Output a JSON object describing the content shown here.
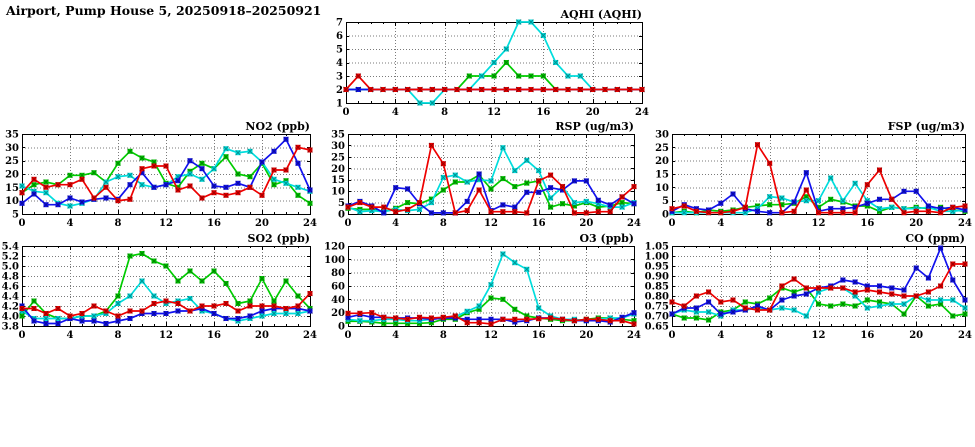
{
  "title": "Airport, Pump House 5, 20250918–20250921",
  "colors": {
    "red": "#ee0000",
    "green": "#00cc00",
    "blue": "#1111ee",
    "cyan": "#00dddd"
  },
  "chart_data": [
    {
      "id": "aqhi",
      "type": "line",
      "title": "AQHI (AQHI)",
      "xlim": [
        0,
        24
      ],
      "xticks": [
        0,
        4,
        8,
        12,
        16,
        20,
        24
      ],
      "x_minor_step": 1,
      "x_step": 1,
      "ylim": [
        1,
        7
      ],
      "yticks": [
        1,
        2,
        3,
        4,
        5,
        6,
        7
      ],
      "ytick_labels": [
        "1",
        "2",
        "3",
        "4",
        "5",
        "6",
        "7"
      ],
      "series": [
        {
          "name": "green",
          "color": "#00cc00",
          "values": [
            2,
            2,
            2,
            2,
            2,
            2,
            2,
            2,
            2,
            2,
            3,
            3,
            3,
            4,
            3,
            3,
            3,
            2,
            2,
            2,
            2,
            2,
            2,
            2,
            2
          ]
        },
        {
          "name": "cyan",
          "color": "#00dddd",
          "values": [
            2,
            2,
            2,
            2,
            2,
            2,
            1,
            1,
            2,
            2,
            2,
            3,
            4,
            5,
            7,
            7,
            6,
            4,
            3,
            3,
            2,
            2,
            2,
            2,
            2
          ]
        },
        {
          "name": "blue",
          "color": "#1111ee",
          "values": [
            2,
            2,
            2,
            2,
            2,
            2,
            2,
            2,
            2,
            2,
            2,
            2,
            2,
            2,
            2,
            2,
            2,
            2,
            2,
            2,
            2,
            2,
            2,
            2,
            2
          ]
        },
        {
          "name": "red",
          "color": "#ee0000",
          "values": [
            2,
            3,
            2,
            2,
            2,
            2,
            2,
            2,
            2,
            2,
            2,
            2,
            2,
            2,
            2,
            2,
            2,
            2,
            2,
            2,
            2,
            2,
            2,
            2,
            2
          ]
        }
      ]
    },
    {
      "id": "no2",
      "type": "line",
      "title": "NO2 (ppb)",
      "xlim": [
        0,
        24
      ],
      "xticks": [
        0,
        4,
        8,
        12,
        16,
        20,
        24
      ],
      "x_minor_step": 1,
      "x_step": 1,
      "ylim": [
        5,
        35
      ],
      "yticks": [
        5,
        10,
        15,
        20,
        25,
        30,
        35
      ],
      "ytick_labels": [
        "5",
        "10",
        "15",
        "20",
        "25",
        "30",
        "35"
      ],
      "series": [
        {
          "name": "green",
          "color": "#00cc00",
          "values": [
            13,
            16,
            17,
            16,
            19.5,
            19.5,
            20.5,
            17,
            24,
            28.5,
            26,
            24.5,
            16.5,
            15,
            21,
            24,
            22,
            26.5,
            20,
            19,
            24,
            16,
            17.5,
            12,
            9
          ]
        },
        {
          "name": "cyan",
          "color": "#00dddd",
          "values": [
            15.5,
            13.5,
            13,
            9,
            8,
            9,
            10.5,
            17,
            19,
            19.5,
            16,
            15,
            16,
            19,
            20,
            18,
            22,
            29.5,
            28,
            28.5,
            24.5,
            18,
            16.5,
            15,
            13.5
          ]
        },
        {
          "name": "blue",
          "color": "#1111ee",
          "values": [
            9,
            12.5,
            8.5,
            8.5,
            11,
            9.5,
            10.5,
            11,
            10.5,
            16,
            20.5,
            15,
            16,
            17.5,
            25,
            22,
            15.5,
            15,
            16.5,
            15,
            24.5,
            28.5,
            33,
            24,
            14
          ]
        },
        {
          "name": "red",
          "color": "#ee0000",
          "values": [
            13,
            18,
            15,
            16,
            16,
            18,
            11,
            15,
            10,
            10.5,
            22,
            23,
            23,
            14,
            15.5,
            11,
            13,
            12,
            13,
            15,
            12,
            21.5,
            21.5,
            30,
            29
          ]
        }
      ]
    },
    {
      "id": "rsp",
      "type": "line",
      "title": "RSP (ug/m3)",
      "xlim": [
        0,
        24
      ],
      "xticks": [
        0,
        4,
        8,
        12,
        16,
        20,
        24
      ],
      "x_minor_step": 1,
      "x_step": 1,
      "ylim": [
        0,
        35
      ],
      "yticks": [
        0,
        5,
        10,
        15,
        20,
        25,
        30,
        35
      ],
      "ytick_labels": [
        "0",
        "5",
        "10",
        "15",
        "20",
        "25",
        "30",
        "35"
      ],
      "series": [
        {
          "name": "green",
          "color": "#00cc00",
          "values": [
            2.5,
            2,
            2,
            1,
            2.5,
            5,
            4.5,
            6.5,
            10.5,
            14,
            14,
            17,
            11,
            15.5,
            12,
            13.5,
            14.5,
            3,
            4.5,
            3.5,
            5,
            3,
            3.5,
            5,
            4.5
          ]
        },
        {
          "name": "cyan",
          "color": "#00dddd",
          "values": [
            3,
            1,
            1.5,
            1,
            2,
            1.5,
            2,
            5,
            16,
            17,
            14,
            15,
            14.5,
            29,
            19,
            23.5,
            19,
            7,
            12,
            5,
            5.5,
            4.5,
            3,
            3,
            5
          ]
        },
        {
          "name": "blue",
          "color": "#1111ee",
          "values": [
            3.5,
            5.5,
            3.5,
            0.5,
            11.5,
            11,
            4.5,
            0.5,
            0.5,
            0.5,
            5.5,
            17.5,
            1.5,
            4,
            3,
            9.5,
            9.5,
            11.5,
            10.5,
            14.5,
            14.5,
            6,
            4,
            7.5,
            4.5
          ]
        },
        {
          "name": "red",
          "color": "#ee0000",
          "values": [
            3,
            5,
            3,
            3,
            1,
            2,
            5,
            30,
            22,
            0.5,
            1.5,
            10.5,
            1,
            1,
            1,
            0.5,
            14.5,
            17,
            12,
            0.5,
            0.5,
            1,
            1,
            7.5,
            12
          ]
        }
      ]
    },
    {
      "id": "fsp",
      "type": "line",
      "title": "FSP (ug/m3)",
      "xlim": [
        0,
        24
      ],
      "xticks": [
        0,
        4,
        8,
        12,
        16,
        20,
        24
      ],
      "x_minor_step": 1,
      "x_step": 1,
      "ylim": [
        0,
        30
      ],
      "yticks": [
        0,
        5,
        10,
        15,
        20,
        25,
        30
      ],
      "ytick_labels": [
        "0",
        "5",
        "10",
        "15",
        "20",
        "25",
        "30"
      ],
      "series": [
        {
          "name": "green",
          "color": "#00cc00",
          "values": [
            0.5,
            1,
            0.5,
            1.5,
            1,
            1.5,
            2.5,
            3,
            3.5,
            3.5,
            4,
            6.5,
            2.5,
            5.5,
            4.5,
            3,
            3,
            1,
            2.5,
            2,
            2.5,
            2,
            2.5,
            1.5,
            1
          ]
        },
        {
          "name": "cyan",
          "color": "#00dddd",
          "values": [
            0.5,
            0.5,
            0.5,
            0.5,
            0.5,
            0.5,
            0.5,
            2,
            6.5,
            6,
            4.5,
            5,
            5,
            13.5,
            5,
            11.5,
            5,
            2,
            2.5,
            2,
            2,
            2.5,
            1,
            1,
            1.5
          ]
        },
        {
          "name": "blue",
          "color": "#1111ee",
          "values": [
            1,
            3.5,
            2,
            1.5,
            4,
            7.5,
            2,
            1,
            0.5,
            0.5,
            4.5,
            15.5,
            1,
            2,
            2,
            2.5,
            4,
            5.5,
            5.5,
            8.5,
            8.5,
            3,
            2,
            2.5,
            1.5
          ]
        },
        {
          "name": "red",
          "color": "#ee0000",
          "values": [
            2,
            3,
            1,
            0.5,
            0.5,
            1,
            2.5,
            26,
            19,
            0.5,
            1,
            9,
            0.5,
            0.5,
            0.5,
            0.5,
            11,
            16.5,
            5.5,
            0.5,
            1,
            1,
            0.5,
            2.5,
            3
          ]
        }
      ]
    },
    {
      "id": "so2",
      "type": "line",
      "title": "SO2 (ppb)",
      "xlim": [
        0,
        24
      ],
      "xticks": [
        0,
        4,
        8,
        12,
        16,
        20,
        24
      ],
      "x_minor_step": 1,
      "x_step": 1,
      "ylim": [
        3.8,
        5.4
      ],
      "yticks": [
        3.8,
        4.0,
        4.2,
        4.4,
        4.6,
        4.8,
        5.0,
        5.2,
        5.4
      ],
      "ytick_labels": [
        "3.8",
        "4.0",
        "4.2",
        "4.4",
        "4.6",
        "4.8",
        "5.0",
        "5.2",
        "5.4"
      ],
      "series": [
        {
          "name": "green",
          "color": "#00cc00",
          "values": [
            4.0,
            4.3,
            4.05,
            3.95,
            3.95,
            4.0,
            4.0,
            4.1,
            4.4,
            5.2,
            5.25,
            5.1,
            5.0,
            4.7,
            4.9,
            4.7,
            4.9,
            4.65,
            4.25,
            4.3,
            4.75,
            4.3,
            4.7,
            4.4,
            4.15
          ]
        },
        {
          "name": "cyan",
          "color": "#00dddd",
          "values": [
            4.1,
            3.95,
            3.95,
            3.95,
            3.95,
            4.0,
            4.0,
            4.05,
            4.25,
            4.4,
            4.7,
            4.4,
            4.25,
            4.3,
            4.35,
            4.1,
            4.05,
            3.95,
            3.9,
            3.95,
            4.0,
            4.05,
            4.05,
            4.05,
            4.1
          ]
        },
        {
          "name": "blue",
          "color": "#1111ee",
          "values": [
            4.2,
            3.9,
            3.85,
            3.85,
            3.95,
            3.9,
            3.9,
            3.85,
            3.9,
            3.95,
            4.05,
            4.05,
            4.05,
            4.1,
            4.1,
            4.15,
            4.05,
            3.95,
            3.95,
            4.0,
            4.1,
            4.15,
            4.15,
            4.15,
            4.1
          ]
        },
        {
          "name": "red",
          "color": "#ee0000",
          "values": [
            4.15,
            4.15,
            4.05,
            4.15,
            4.0,
            4.05,
            4.2,
            4.1,
            4.0,
            4.1,
            4.1,
            4.25,
            4.3,
            4.25,
            4.1,
            4.2,
            4.2,
            4.25,
            4.1,
            4.2,
            4.2,
            4.2,
            4.15,
            4.2,
            4.45
          ]
        }
      ]
    },
    {
      "id": "o3",
      "type": "line",
      "title": "O3 (ppb)",
      "xlim": [
        0,
        24
      ],
      "xticks": [
        0,
        4,
        8,
        12,
        16,
        20,
        24
      ],
      "x_minor_step": 1,
      "x_step": 1,
      "ylim": [
        0,
        120
      ],
      "yticks": [
        0,
        20,
        40,
        60,
        80,
        100,
        120
      ],
      "ytick_labels": [
        "0",
        "20",
        "40",
        "60",
        "80",
        "100",
        "120"
      ],
      "series": [
        {
          "name": "green",
          "color": "#00cc00",
          "values": [
            7,
            7,
            6,
            4,
            4,
            4,
            4,
            5,
            10,
            10,
            20,
            25,
            42,
            40,
            25,
            15,
            12,
            10,
            8,
            8,
            10,
            12,
            12,
            10,
            8
          ]
        },
        {
          "name": "cyan",
          "color": "#00dddd",
          "values": [
            10,
            8,
            8,
            10,
            10,
            8,
            8,
            10,
            12,
            14,
            22,
            30,
            62,
            108,
            95,
            85,
            27,
            15,
            10,
            10,
            8,
            10,
            12,
            12,
            18
          ]
        },
        {
          "name": "blue",
          "color": "#1111ee",
          "values": [
            13,
            17,
            13,
            13,
            12,
            12,
            12,
            10,
            12,
            12,
            10,
            10,
            10,
            10,
            6,
            8,
            12,
            12,
            10,
            8,
            8,
            8,
            6,
            13,
            20
          ]
        },
        {
          "name": "red",
          "color": "#ee0000",
          "values": [
            19,
            19,
            20,
            13,
            12,
            10,
            13,
            12,
            13,
            15,
            5,
            5,
            3,
            10,
            10,
            10,
            11,
            12,
            10,
            8,
            10,
            10,
            8,
            8,
            3
          ]
        }
      ]
    },
    {
      "id": "co",
      "type": "line",
      "title": "CO (ppm)",
      "xlim": [
        0,
        24
      ],
      "xticks": [
        0,
        4,
        8,
        12,
        16,
        20,
        24
      ],
      "x_minor_step": 1,
      "x_step": 1,
      "ylim": [
        0.65,
        1.05
      ],
      "yticks": [
        0.65,
        0.7,
        0.75,
        0.8,
        0.85,
        0.9,
        0.95,
        1.0,
        1.05
      ],
      "ytick_labels": [
        "0.65",
        "0.70",
        "0.75",
        "0.80",
        "0.85",
        "0.90",
        "0.95",
        "1.00",
        "1.05"
      ],
      "series": [
        {
          "name": "green",
          "color": "#00cc00",
          "values": [
            0.71,
            0.69,
            0.69,
            0.68,
            0.72,
            0.73,
            0.77,
            0.76,
            0.79,
            0.84,
            0.82,
            0.84,
            0.76,
            0.75,
            0.76,
            0.75,
            0.78,
            0.77,
            0.76,
            0.71,
            0.8,
            0.75,
            0.76,
            0.7,
            0.71
          ]
        },
        {
          "name": "cyan",
          "color": "#00dddd",
          "values": [
            0.71,
            0.73,
            0.72,
            0.72,
            0.7,
            0.73,
            0.73,
            0.74,
            0.73,
            0.74,
            0.73,
            0.7,
            0.82,
            0.84,
            0.84,
            0.8,
            0.74,
            0.75,
            0.76,
            0.76,
            0.8,
            0.78,
            0.78,
            0.78,
            0.74
          ]
        },
        {
          "name": "blue",
          "color": "#1111ee",
          "values": [
            0.71,
            0.74,
            0.74,
            0.77,
            0.71,
            0.72,
            0.73,
            0.75,
            0.73,
            0.78,
            0.8,
            0.81,
            0.84,
            0.85,
            0.88,
            0.87,
            0.85,
            0.85,
            0.84,
            0.83,
            0.94,
            0.89,
            1.04,
            0.88,
            0.78
          ]
        },
        {
          "name": "red",
          "color": "#ee0000",
          "values": [
            0.77,
            0.75,
            0.8,
            0.82,
            0.77,
            0.78,
            0.74,
            0.73,
            0.73,
            0.85,
            0.885,
            0.84,
            0.84,
            0.84,
            0.84,
            0.82,
            0.83,
            0.82,
            0.81,
            0.8,
            0.8,
            0.82,
            0.85,
            0.96,
            0.96
          ]
        }
      ]
    }
  ]
}
